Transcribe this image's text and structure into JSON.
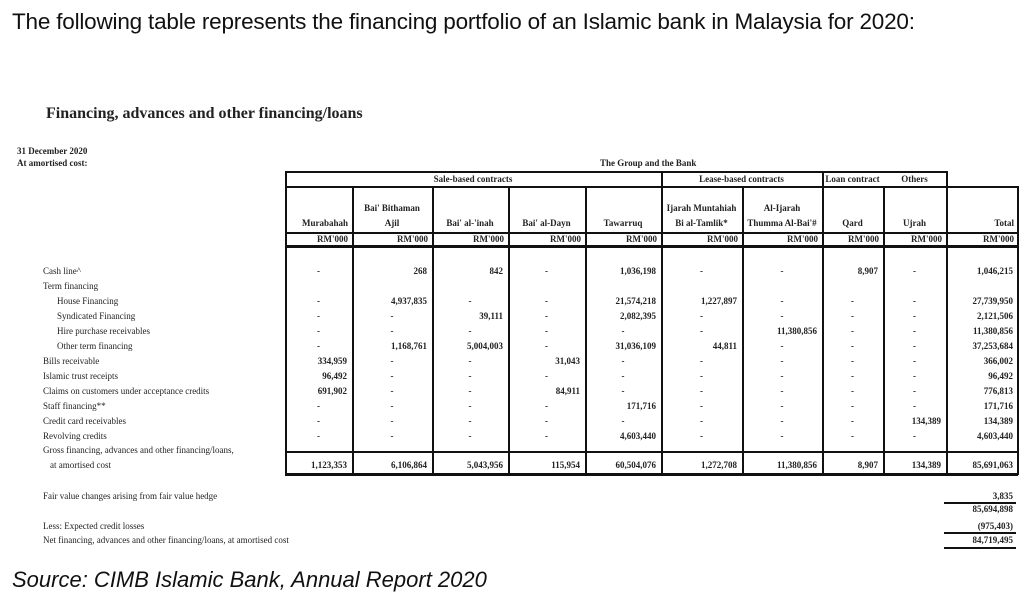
{
  "intro_text": "The following table represents the financing portfolio of an Islamic bank in Malaysia for 2020:",
  "document": {
    "title": "Financing, advances and other financing/loans",
    "date": "31 December 2020",
    "basis": "At amortised cost:",
    "group_label": "The Group and the Bank",
    "column_groups": [
      {
        "label": "Sale-based contracts"
      },
      {
        "label": "Lease-based contracts"
      },
      {
        "label": "Loan contract"
      },
      {
        "label": "Others"
      }
    ],
    "columns": [
      {
        "line1": "",
        "line2": "Murabahah",
        "unit": "RM'000"
      },
      {
        "line1": "Bai' Bithaman",
        "line2": "Ajil",
        "unit": "RM'000"
      },
      {
        "line1": "",
        "line2": "Bai' al-'inah",
        "unit": "RM'000"
      },
      {
        "line1": "",
        "line2": "Bai' al-Dayn",
        "unit": "RM'000"
      },
      {
        "line1": "",
        "line2": "Tawarruq",
        "unit": "RM'000"
      },
      {
        "line1": "Ijarah Muntahiah",
        "line2": "Bi al-Tamlik*",
        "unit": "RM'000"
      },
      {
        "line1": "Al-Ijarah",
        "line2": "Thumma Al-Bai'#",
        "unit": "RM'000"
      },
      {
        "line1": "",
        "line2": "Qard",
        "unit": "RM'000"
      },
      {
        "line1": "",
        "line2": "Ujrah",
        "unit": "RM'000"
      },
      {
        "line1": "",
        "line2": "Total",
        "unit": "RM'000"
      }
    ],
    "rows": [
      {
        "label": "Cash line^",
        "values": [
          "-",
          "268",
          "842",
          "-",
          "1,036,198",
          "-",
          "-",
          "8,907",
          "-",
          "1,046,215"
        ]
      },
      {
        "label": "Term financing",
        "values": [
          "",
          "",
          "",
          "",
          "",
          "",
          "",
          "",
          "",
          ""
        ]
      },
      {
        "label": "House Financing",
        "values": [
          "-",
          "4,937,835",
          "-",
          "-",
          "21,574,218",
          "1,227,897",
          "-",
          "-",
          "-",
          "27,739,950"
        ]
      },
      {
        "label": "Syndicated Financing",
        "values": [
          "-",
          "-",
          "39,111",
          "-",
          "2,082,395",
          "-",
          "-",
          "-",
          "-",
          "2,121,506"
        ]
      },
      {
        "label": "Hire purchase receivables",
        "values": [
          "-",
          "-",
          "-",
          "-",
          "-",
          "-",
          "11,380,856",
          "-",
          "-",
          "11,380,856"
        ]
      },
      {
        "label": "Other term financing",
        "values": [
          "-",
          "1,168,761",
          "5,004,003",
          "-",
          "31,036,109",
          "44,811",
          "-",
          "-",
          "-",
          "37,253,684"
        ]
      },
      {
        "label": "Bills receivable",
        "values": [
          "334,959",
          "-",
          "-",
          "31,043",
          "-",
          "-",
          "-",
          "-",
          "-",
          "366,002"
        ]
      },
      {
        "label": "Islamic trust receipts",
        "values": [
          "96,492",
          "-",
          "-",
          "-",
          "-",
          "-",
          "-",
          "-",
          "-",
          "96,492"
        ]
      },
      {
        "label": "Claims on customers under acceptance credits",
        "values": [
          "691,902",
          "-",
          "-",
          "84,911",
          "-",
          "-",
          "-",
          "-",
          "-",
          "776,813"
        ]
      },
      {
        "label": "Staff financing**",
        "values": [
          "-",
          "-",
          "-",
          "-",
          "171,716",
          "-",
          "-",
          "-",
          "-",
          "171,716"
        ]
      },
      {
        "label": "Credit card receivables",
        "values": [
          "-",
          "-",
          "-",
          "-",
          "-",
          "-",
          "-",
          "-",
          "134,389",
          "134,389"
        ]
      },
      {
        "label": "Revolving credits",
        "values": [
          "-",
          "-",
          "-",
          "-",
          "4,603,440",
          "-",
          "-",
          "-",
          "-",
          "4,603,440"
        ]
      }
    ],
    "gross_row": {
      "label_line1": "Gross financing, advances and other financing/loans,",
      "label_line2": "at amortised cost",
      "values": [
        "1,123,353",
        "6,106,864",
        "5,043,956",
        "115,954",
        "60,504,076",
        "1,272,708",
        "11,380,856",
        "8,907",
        "134,389",
        "85,691,063"
      ]
    },
    "summary": [
      {
        "label": "Fair value changes arising from fair value hedge",
        "value": "3,835"
      },
      {
        "label": "",
        "value": "85,694,898"
      },
      {
        "label": "Less: Expected credit losses",
        "value": "(975,403)"
      },
      {
        "label": "Net financing, advances and other financing/loans, at amortised cost",
        "value": "84,719,495"
      }
    ]
  },
  "source": "Source: CIMB Islamic Bank, Annual Report 2020"
}
